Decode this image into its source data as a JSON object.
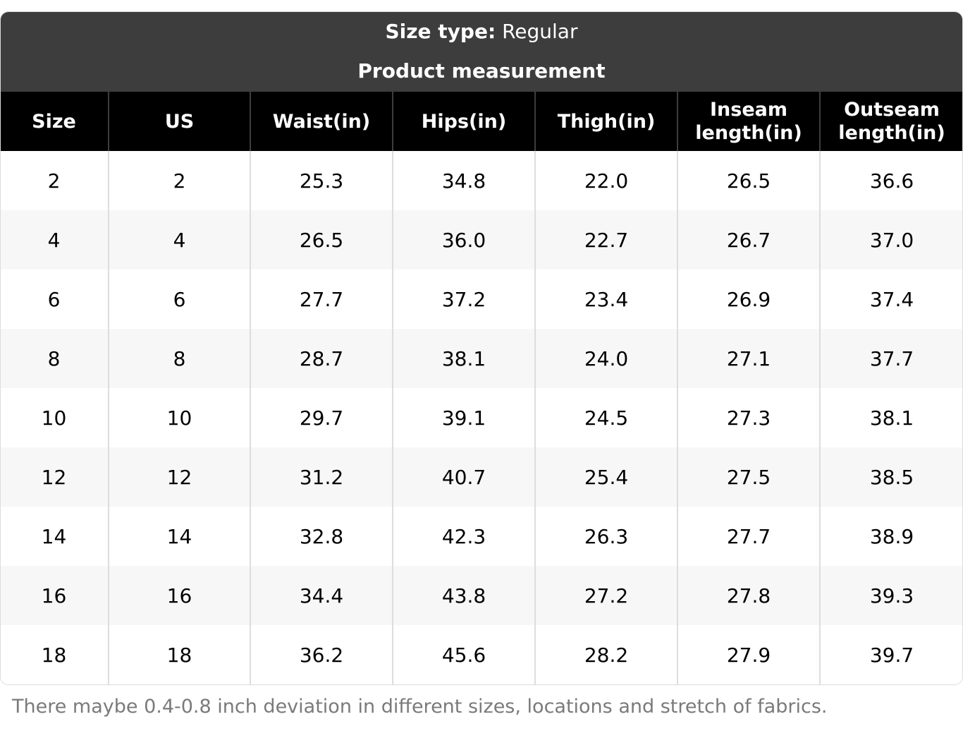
{
  "banner": {
    "size_type_label": "Size type:",
    "size_type_value": "Regular",
    "title": "Product measurement",
    "background": "#3d3d3d"
  },
  "table": {
    "headers": [
      "Size",
      "US",
      "Waist(in)",
      "Hips(in)",
      "Thigh(in)",
      "Inseam length(in)",
      "Outseam length(in)"
    ],
    "rows": [
      [
        "2",
        "2",
        "25.3",
        "34.8",
        "22.0",
        "26.5",
        "36.6"
      ],
      [
        "4",
        "4",
        "26.5",
        "36.0",
        "22.7",
        "26.7",
        "37.0"
      ],
      [
        "6",
        "6",
        "27.7",
        "37.2",
        "23.4",
        "26.9",
        "37.4"
      ],
      [
        "8",
        "8",
        "28.7",
        "38.1",
        "24.0",
        "27.1",
        "37.7"
      ],
      [
        "10",
        "10",
        "29.7",
        "39.1",
        "24.5",
        "27.3",
        "38.1"
      ],
      [
        "12",
        "12",
        "31.2",
        "40.7",
        "25.4",
        "27.5",
        "38.5"
      ],
      [
        "14",
        "14",
        "32.8",
        "42.3",
        "26.3",
        "27.7",
        "38.9"
      ],
      [
        "16",
        "16",
        "34.4",
        "43.8",
        "27.2",
        "27.8",
        "39.3"
      ],
      [
        "18",
        "18",
        "36.2",
        "45.6",
        "28.2",
        "27.9",
        "39.7"
      ]
    ],
    "header_background": "#000000",
    "stripe_color": "#f7f7f7"
  },
  "note": "There maybe 0.4-0.8 inch deviation in different sizes, locations and stretch of fabrics."
}
